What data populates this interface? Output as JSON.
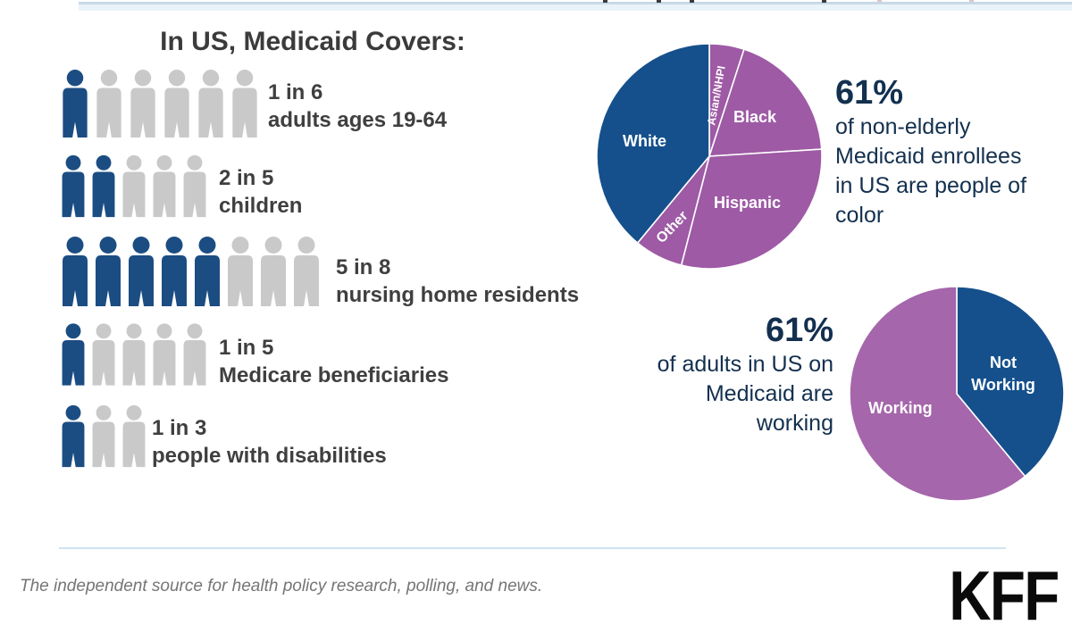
{
  "pictograph": {
    "title": "In US, Medicaid Covers:",
    "colors": {
      "covered": "#1b4d82",
      "not_covered": "#c9c9c9"
    },
    "rows": [
      {
        "ratio": "1 in 6",
        "label": "adults ages 19-64",
        "filled": 1,
        "total": 6
      },
      {
        "ratio": "2 in 5",
        "label": "children",
        "filled": 2,
        "total": 5
      },
      {
        "ratio": "5 in 8",
        "label": "nursing home residents",
        "filled": 5,
        "total": 8
      },
      {
        "ratio": "1 in 5",
        "label": "Medicare beneficiaries",
        "filled": 1,
        "total": 5
      },
      {
        "ratio": "1 in 3",
        "label": "people with disabilities",
        "filled": 1,
        "total": 3
      }
    ]
  },
  "chart_data": [
    {
      "type": "pie",
      "name": "medicaid-enrollees-by-race-ethnicity",
      "start_angle": "12-oclock",
      "clockwise": true,
      "slices": [
        {
          "label": "Asian/NHPI",
          "value": 5,
          "color": "#9e5aa5"
        },
        {
          "label": "Black",
          "value": 19,
          "color": "#9e5aa5"
        },
        {
          "label": "Hispanic",
          "value": 30,
          "color": "#9e5aa5"
        },
        {
          "label": "Other",
          "value": 7,
          "color": "#9e5aa5"
        },
        {
          "label": "White",
          "value": 39,
          "color": "#15508c"
        }
      ],
      "callout": {
        "stat": "61%",
        "text": "of non-elderly Medicaid enrollees in US are people of color"
      }
    },
    {
      "type": "pie",
      "name": "adults-on-medicaid-working-status",
      "start_angle": "12-oclock",
      "clockwise": true,
      "slices": [
        {
          "label": "Not Working",
          "value": 39,
          "color": "#15508c"
        },
        {
          "label": "Working",
          "value": 61,
          "color": "#a566ab"
        }
      ],
      "callout": {
        "stat": "61%",
        "text": "of adults in US on Medicaid are working"
      }
    }
  ],
  "text_colors": {
    "headline_navy": "#13304f",
    "body_gray": "#3f3f3f",
    "tagline_gray": "#757575"
  },
  "footer": {
    "tagline": "The independent source for health policy research, polling, and news.",
    "logo": "KFF"
  }
}
